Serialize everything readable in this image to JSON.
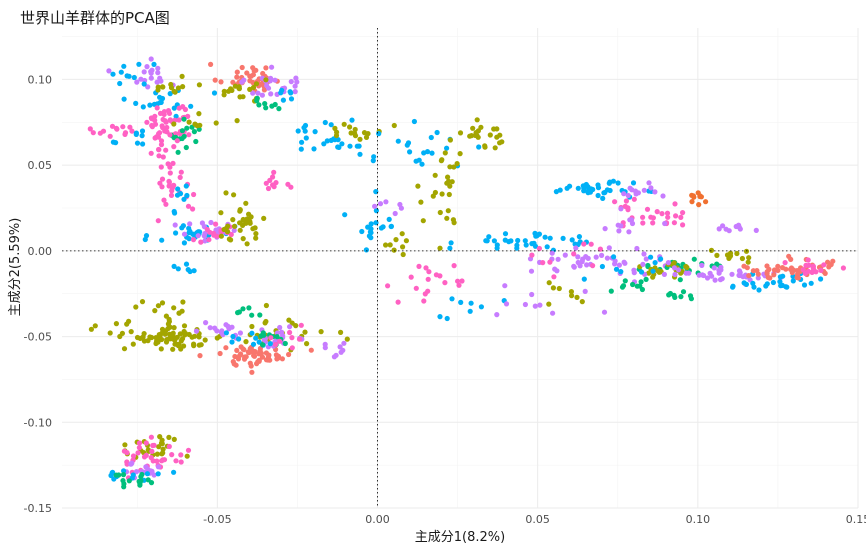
{
  "chart_data": {
    "type": "scatter",
    "title": "世界山羊群体的PCA图",
    "xlabel": "主成分1(8.2%)",
    "ylabel": "主成分2(5.59%)",
    "xlim": [
      -0.0985,
      0.15
    ],
    "ylim": [
      -0.15,
      0.13
    ],
    "x_ticks": [
      -0.05,
      0.0,
      0.05,
      0.1,
      0.15
    ],
    "x_tick_labels": [
      "-0.05",
      "0.00",
      "0.05",
      "0.10",
      "0.15"
    ],
    "y_ticks": [
      -0.15,
      -0.1,
      -0.05,
      0.0,
      0.05,
      0.1
    ],
    "y_tick_labels": [
      "-0.15",
      "-0.10",
      "-0.05",
      "0.00",
      "0.05",
      "0.10"
    ],
    "reference_lines": {
      "x": 0,
      "y": 0,
      "style": "dotted"
    },
    "grid": true,
    "legend": "none",
    "colors": {
      "red": "#F8766D",
      "olive": "#A3A500",
      "green": "#00BF7D",
      "cyan": "#00B0F6",
      "purple": "#C77CFF",
      "pink": "#FF61C3",
      "orange": "#F07030"
    },
    "clusters": [
      {
        "color": "red",
        "x": -0.04,
        "y": 0.101,
        "sx": 0.005,
        "sy": 0.004,
        "n": 40
      },
      {
        "color": "purple",
        "x": -0.033,
        "y": 0.097,
        "sx": 0.004,
        "sy": 0.004,
        "n": 25
      },
      {
        "color": "olive",
        "x": -0.043,
        "y": 0.093,
        "sx": 0.004,
        "sy": 0.004,
        "n": 18
      },
      {
        "color": "green",
        "x": -0.034,
        "y": 0.085,
        "sx": 0.003,
        "sy": 0.003,
        "n": 8
      },
      {
        "color": "cyan",
        "x": -0.027,
        "y": 0.092,
        "sx": 0.003,
        "sy": 0.003,
        "n": 6
      },
      {
        "color": "purple",
        "x": -0.073,
        "y": 0.104,
        "sx": 0.005,
        "sy": 0.004,
        "n": 18
      },
      {
        "color": "cyan",
        "x": -0.078,
        "y": 0.101,
        "sx": 0.004,
        "sy": 0.005,
        "n": 10
      },
      {
        "color": "cyan",
        "x": -0.067,
        "y": 0.089,
        "sx": 0.005,
        "sy": 0.004,
        "n": 18
      },
      {
        "color": "olive",
        "x": -0.061,
        "y": 0.094,
        "sx": 0.005,
        "sy": 0.003,
        "n": 12
      },
      {
        "color": "pink",
        "x": -0.066,
        "y": 0.075,
        "sx": 0.004,
        "sy": 0.007,
        "n": 50
      },
      {
        "color": "green",
        "x": -0.06,
        "y": 0.066,
        "sx": 0.003,
        "sy": 0.004,
        "n": 15
      },
      {
        "color": "pink",
        "x": -0.081,
        "y": 0.07,
        "sx": 0.004,
        "sy": 0.002,
        "n": 12
      },
      {
        "color": "cyan",
        "x": -0.075,
        "y": 0.063,
        "sx": 0.003,
        "sy": 0.004,
        "n": 8
      },
      {
        "color": "pink",
        "x": -0.064,
        "y": 0.045,
        "sx": 0.003,
        "sy": 0.012,
        "n": 35
      },
      {
        "color": "cyan",
        "x": -0.062,
        "y": 0.03,
        "sx": 0.002,
        "sy": 0.004,
        "n": 8
      },
      {
        "color": "olive",
        "x": -0.054,
        "y": 0.075,
        "sx": 0.004,
        "sy": 0.003,
        "n": 8
      },
      {
        "color": "cyan",
        "x": -0.057,
        "y": 0.01,
        "sx": 0.006,
        "sy": 0.004,
        "n": 28
      },
      {
        "color": "purple",
        "x": -0.051,
        "y": 0.012,
        "sx": 0.005,
        "sy": 0.004,
        "n": 18
      },
      {
        "color": "pink",
        "x": -0.051,
        "y": 0.01,
        "sx": 0.004,
        "sy": 0.003,
        "n": 15
      },
      {
        "color": "olive",
        "x": -0.043,
        "y": 0.017,
        "sx": 0.004,
        "sy": 0.006,
        "n": 35
      },
      {
        "color": "cyan",
        "x": -0.06,
        "y": -0.01,
        "sx": 0.003,
        "sy": 0.002,
        "n": 6
      },
      {
        "color": "pink",
        "x": -0.03,
        "y": 0.04,
        "sx": 0.003,
        "sy": 0.003,
        "n": 10
      },
      {
        "color": "olive",
        "x": -0.065,
        "y": -0.05,
        "sx": 0.009,
        "sy": 0.004,
        "n": 80
      },
      {
        "color": "olive",
        "x": -0.066,
        "y": -0.035,
        "sx": 0.004,
        "sy": 0.003,
        "n": 12
      },
      {
        "color": "olive",
        "x": -0.03,
        "y": -0.047,
        "sx": 0.007,
        "sy": 0.005,
        "n": 25
      },
      {
        "color": "purple",
        "x": -0.049,
        "y": -0.047,
        "sx": 0.005,
        "sy": 0.003,
        "n": 15
      },
      {
        "color": "red",
        "x": -0.038,
        "y": -0.061,
        "sx": 0.006,
        "sy": 0.003,
        "n": 55
      },
      {
        "color": "purple",
        "x": -0.031,
        "y": -0.05,
        "sx": 0.004,
        "sy": 0.003,
        "n": 20
      },
      {
        "color": "cyan",
        "x": -0.042,
        "y": -0.051,
        "sx": 0.004,
        "sy": 0.002,
        "n": 10
      },
      {
        "color": "green",
        "x": -0.041,
        "y": -0.036,
        "sx": 0.002,
        "sy": 0.002,
        "n": 6
      },
      {
        "color": "green",
        "x": -0.034,
        "y": -0.051,
        "sx": 0.003,
        "sy": 0.002,
        "n": 10
      },
      {
        "color": "pink",
        "x": -0.028,
        "y": -0.051,
        "sx": 0.003,
        "sy": 0.003,
        "n": 8
      },
      {
        "color": "purple",
        "x": -0.012,
        "y": -0.06,
        "sx": 0.003,
        "sy": 0.003,
        "n": 8
      },
      {
        "color": "olive",
        "x": -0.071,
        "y": -0.115,
        "sx": 0.005,
        "sy": 0.004,
        "n": 25
      },
      {
        "color": "pink",
        "x": -0.07,
        "y": -0.12,
        "sx": 0.005,
        "sy": 0.005,
        "n": 35
      },
      {
        "color": "purple",
        "x": -0.073,
        "y": -0.127,
        "sx": 0.003,
        "sy": 0.003,
        "n": 15
      },
      {
        "color": "cyan",
        "x": -0.075,
        "y": -0.13,
        "sx": 0.004,
        "sy": 0.003,
        "n": 12
      },
      {
        "color": "green",
        "x": -0.077,
        "y": -0.134,
        "sx": 0.004,
        "sy": 0.002,
        "n": 15
      },
      {
        "color": "cyan",
        "x": -0.015,
        "y": 0.066,
        "sx": 0.008,
        "sy": 0.005,
        "n": 25
      },
      {
        "color": "olive",
        "x": -0.006,
        "y": 0.07,
        "sx": 0.005,
        "sy": 0.003,
        "n": 15
      },
      {
        "color": "cyan",
        "x": 0.013,
        "y": 0.06,
        "sx": 0.01,
        "sy": 0.006,
        "n": 20
      },
      {
        "color": "olive",
        "x": 0.032,
        "y": 0.067,
        "sx": 0.004,
        "sy": 0.004,
        "n": 22
      },
      {
        "color": "olive",
        "x": 0.024,
        "y": 0.05,
        "sx": 0.004,
        "sy": 0.006,
        "n": 12
      },
      {
        "color": "olive",
        "x": 0.02,
        "y": 0.025,
        "sx": 0.005,
        "sy": 0.01,
        "n": 14
      },
      {
        "color": "cyan",
        "x": -0.002,
        "y": 0.012,
        "sx": 0.004,
        "sy": 0.008,
        "n": 18
      },
      {
        "color": "olive",
        "x": 0.008,
        "y": 0.005,
        "sx": 0.004,
        "sy": 0.004,
        "n": 8
      },
      {
        "color": "pink",
        "x": 0.015,
        "y": -0.018,
        "sx": 0.008,
        "sy": 0.006,
        "n": 18
      },
      {
        "color": "purple",
        "x": 0.005,
        "y": 0.03,
        "sx": 0.003,
        "sy": 0.006,
        "n": 6
      },
      {
        "color": "cyan",
        "x": 0.035,
        "y": -0.033,
        "sx": 0.007,
        "sy": 0.004,
        "n": 8
      },
      {
        "color": "purple",
        "x": 0.05,
        "y": -0.035,
        "sx": 0.008,
        "sy": 0.006,
        "n": 10
      },
      {
        "color": "cyan",
        "x": 0.045,
        "y": 0.005,
        "sx": 0.012,
        "sy": 0.003,
        "n": 35
      },
      {
        "color": "cyan",
        "x": 0.068,
        "y": 0.036,
        "sx": 0.006,
        "sy": 0.002,
        "n": 35
      },
      {
        "color": "purple",
        "x": 0.082,
        "y": 0.035,
        "sx": 0.004,
        "sy": 0.002,
        "n": 12
      },
      {
        "color": "pink",
        "x": 0.08,
        "y": 0.022,
        "sx": 0.005,
        "sy": 0.006,
        "n": 18
      },
      {
        "color": "pink",
        "x": 0.09,
        "y": 0.018,
        "sx": 0.005,
        "sy": 0.004,
        "n": 10
      },
      {
        "color": "orange",
        "x": 0.1,
        "y": 0.03,
        "sx": 0.002,
        "sy": 0.002,
        "n": 10
      },
      {
        "color": "purple",
        "x": 0.112,
        "y": 0.013,
        "sx": 0.003,
        "sy": 0.002,
        "n": 10
      },
      {
        "color": "purple",
        "x": 0.07,
        "y": -0.005,
        "sx": 0.01,
        "sy": 0.003,
        "n": 40
      },
      {
        "color": "green",
        "x": 0.095,
        "y": -0.01,
        "sx": 0.006,
        "sy": 0.003,
        "n": 25
      },
      {
        "color": "olive",
        "x": 0.09,
        "y": -0.011,
        "sx": 0.005,
        "sy": 0.003,
        "n": 20
      },
      {
        "color": "purple",
        "x": 0.105,
        "y": -0.013,
        "sx": 0.01,
        "sy": 0.003,
        "n": 40
      },
      {
        "color": "cyan",
        "x": 0.125,
        "y": -0.018,
        "sx": 0.007,
        "sy": 0.002,
        "n": 25
      },
      {
        "color": "red",
        "x": 0.13,
        "y": -0.011,
        "sx": 0.008,
        "sy": 0.003,
        "n": 45
      },
      {
        "color": "pink",
        "x": 0.135,
        "y": -0.01,
        "sx": 0.004,
        "sy": 0.002,
        "n": 15
      },
      {
        "color": "olive",
        "x": 0.11,
        "y": -0.003,
        "sx": 0.004,
        "sy": 0.002,
        "n": 12
      },
      {
        "color": "green",
        "x": 0.095,
        "y": -0.026,
        "sx": 0.003,
        "sy": 0.002,
        "n": 8
      },
      {
        "color": "olive",
        "x": 0.062,
        "y": -0.025,
        "sx": 0.005,
        "sy": 0.003,
        "n": 8
      },
      {
        "color": "green",
        "x": 0.08,
        "y": -0.02,
        "sx": 0.005,
        "sy": 0.003,
        "n": 10
      },
      {
        "color": "cyan",
        "x": 0.08,
        "y": -0.01,
        "sx": 0.008,
        "sy": 0.004,
        "n": 10
      },
      {
        "color": "pink",
        "x": 0.058,
        "y": 0.0,
        "sx": 0.006,
        "sy": 0.005,
        "n": 10
      },
      {
        "color": "purple",
        "x": 0.078,
        "y": 0.012,
        "sx": 0.006,
        "sy": 0.004,
        "n": 10
      }
    ]
  }
}
